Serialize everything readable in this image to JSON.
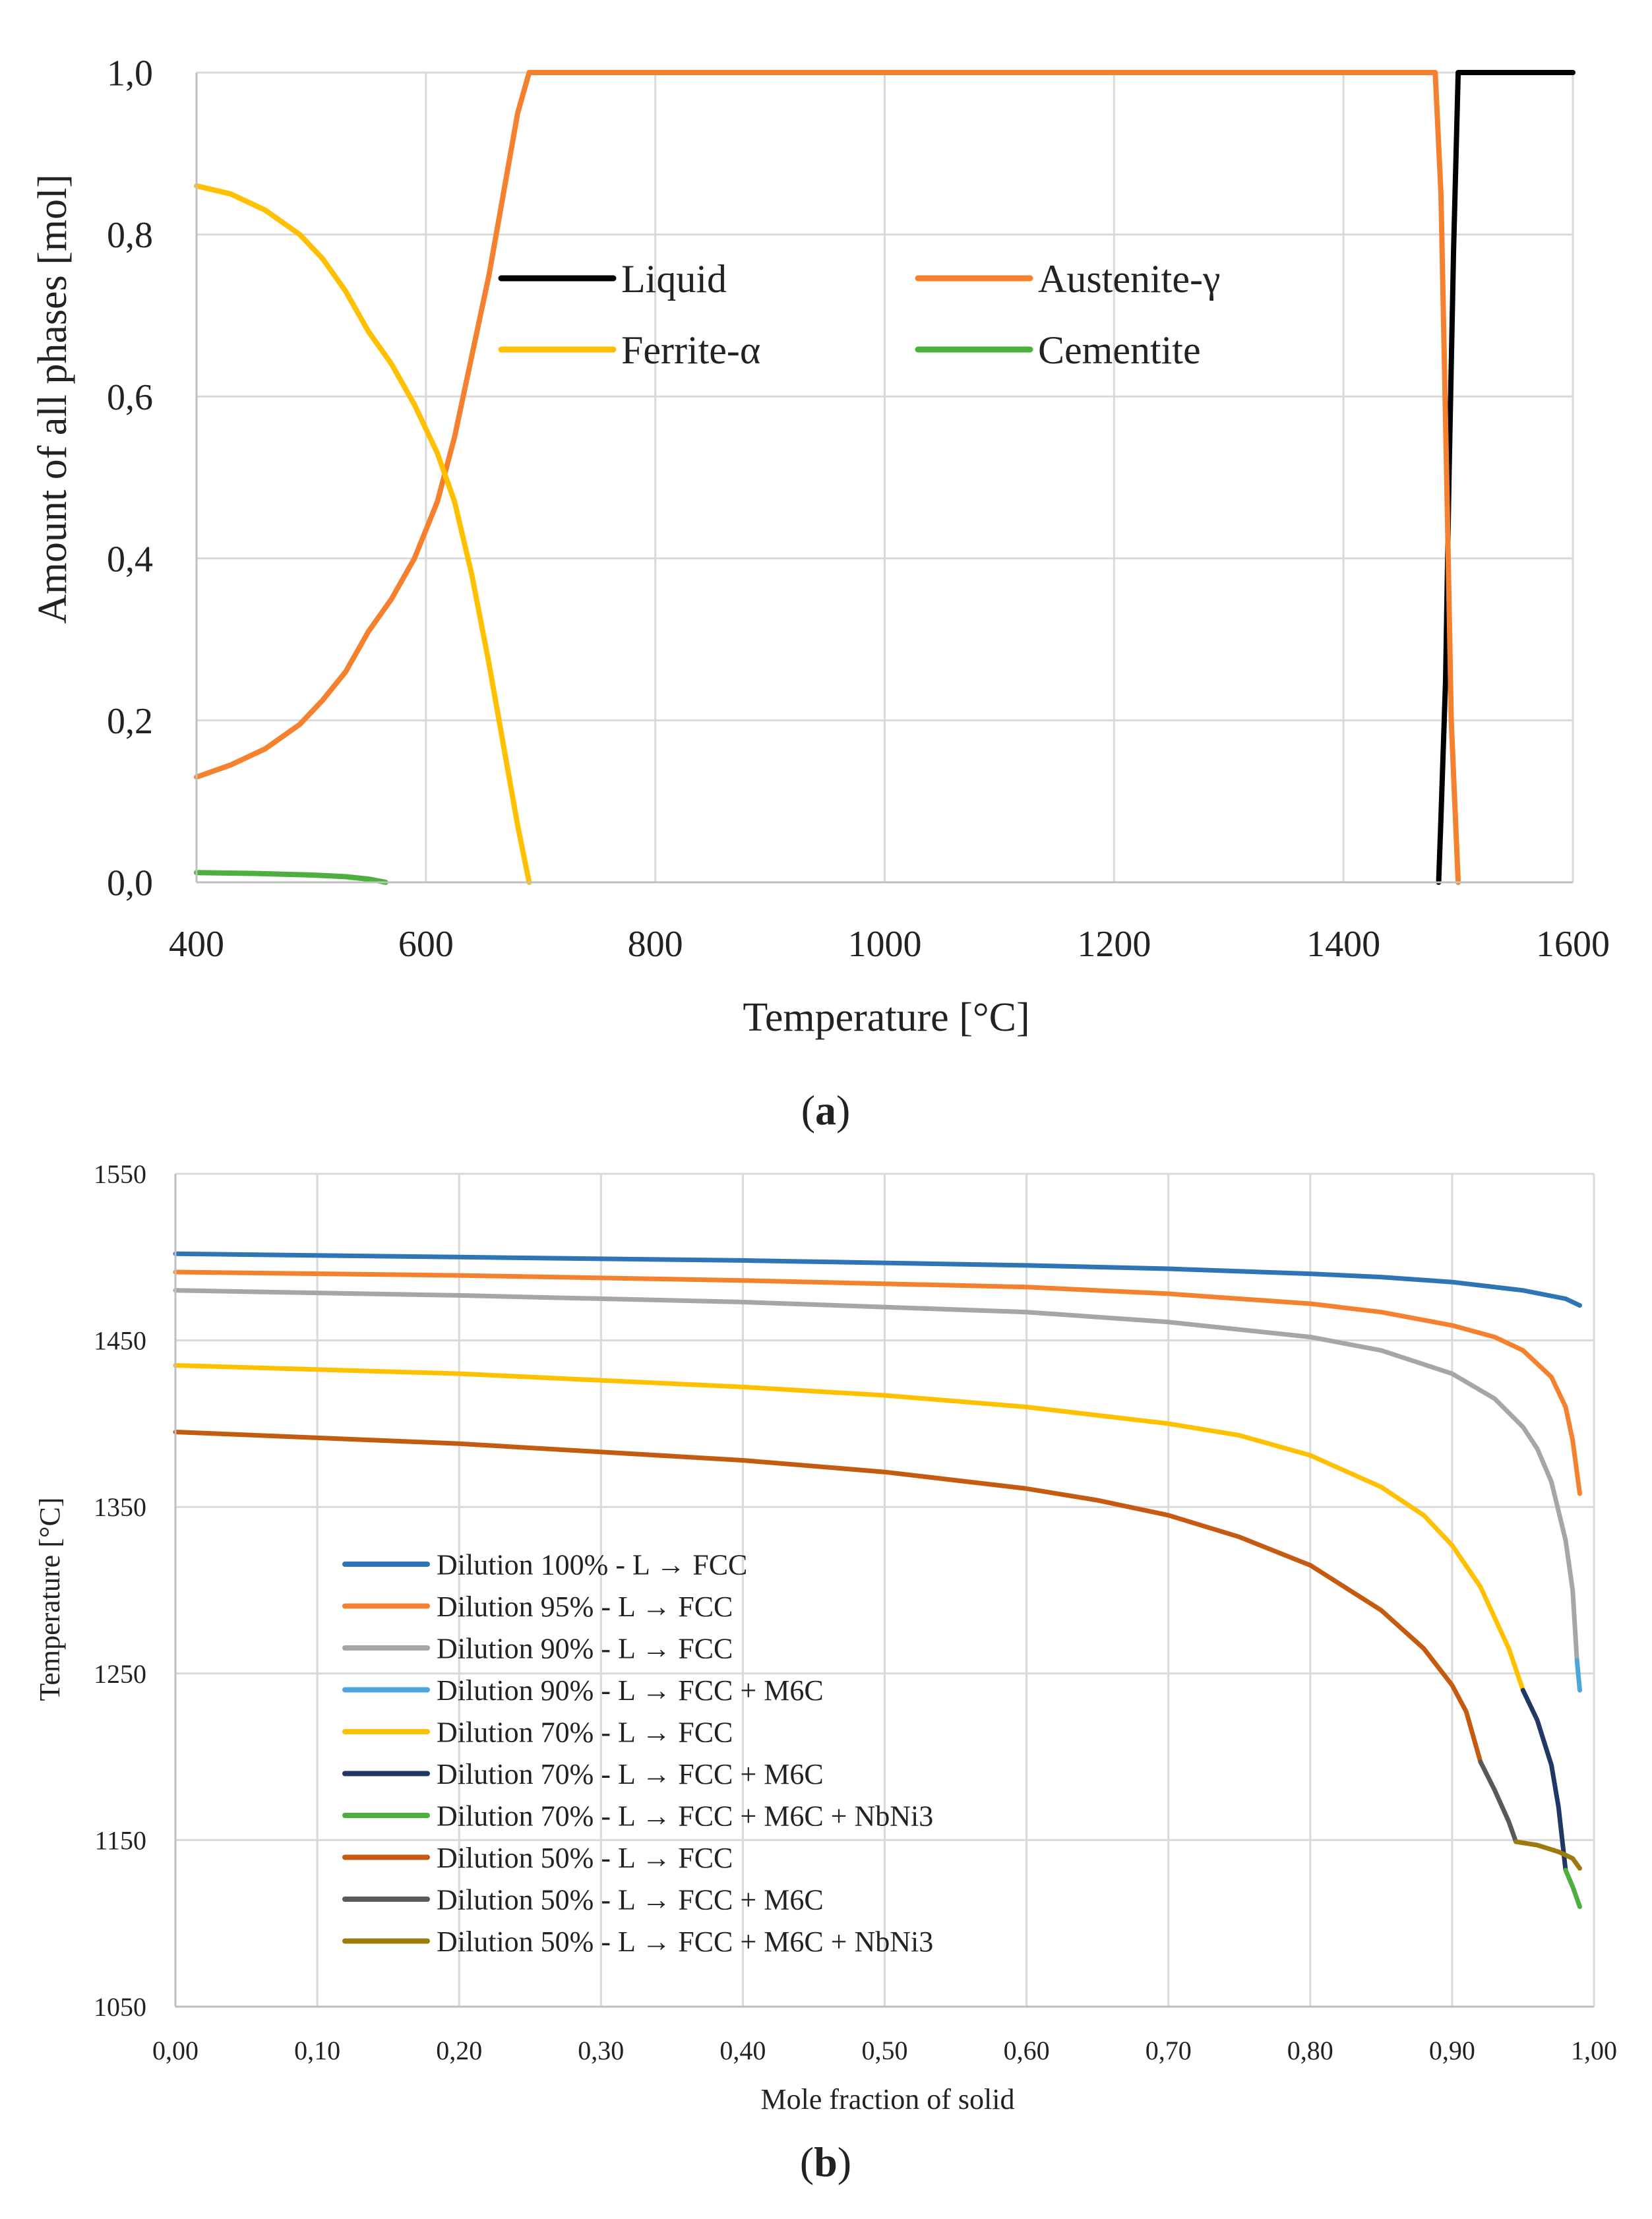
{
  "chart_data": [
    {
      "panel": "a",
      "type": "line",
      "caption_open": "(",
      "caption_letter": "a",
      "caption_close": ")",
      "xlabel": "Temperature [°C]",
      "ylabel": "Amount of all phases [mol]",
      "xlim": [
        400,
        1600
      ],
      "ylim": [
        0,
        1
      ],
      "xticks": [
        400,
        600,
        800,
        1000,
        1200,
        1400,
        1600
      ],
      "yticks": [
        0.0,
        0.2,
        0.4,
        0.6,
        0.8,
        1.0
      ],
      "xtick_labels": [
        "400",
        "600",
        "800",
        "1000",
        "1200",
        "1400",
        "1600"
      ],
      "ytick_labels": [
        "0,0",
        "0,2",
        "0,4",
        "0,6",
        "0,8",
        "1,0"
      ],
      "grid": true,
      "legend_placement": "center",
      "series": [
        {
          "name": "Liquid",
          "color": "#000000",
          "x": [
            1483,
            1485,
            1489,
            1492,
            1496,
            1500,
            1600
          ],
          "y": [
            0.0,
            0.08,
            0.25,
            0.5,
            0.78,
            1.0,
            1.0
          ]
        },
        {
          "name": "Austenite-γ",
          "color": "#F5802E",
          "x": [
            400,
            430,
            460,
            490,
            510,
            530,
            550,
            560,
            570,
            590,
            610,
            625,
            640,
            655,
            670,
            680,
            690,
            700,
            800,
            1000,
            1200,
            1400,
            1480,
            1485,
            1490,
            1494,
            1500
          ],
          "y": [
            0.13,
            0.145,
            0.165,
            0.195,
            0.225,
            0.26,
            0.31,
            0.33,
            0.35,
            0.4,
            0.47,
            0.55,
            0.65,
            0.75,
            0.87,
            0.95,
            1.0,
            1.0,
            1.0,
            1.0,
            1.0,
            1.0,
            1.0,
            0.85,
            0.5,
            0.2,
            0.0
          ]
        },
        {
          "name": "Ferrite-α",
          "color": "#FFC000",
          "x": [
            400,
            430,
            460,
            490,
            510,
            530,
            550,
            570,
            590,
            610,
            625,
            640,
            655,
            670,
            680,
            690
          ],
          "y": [
            0.86,
            0.85,
            0.83,
            0.8,
            0.77,
            0.73,
            0.68,
            0.64,
            0.59,
            0.53,
            0.47,
            0.38,
            0.27,
            0.15,
            0.07,
            0.0
          ]
        },
        {
          "name": "Cementite",
          "color": "#4CAF3E",
          "x": [
            400,
            450,
            500,
            530,
            550,
            565
          ],
          "y": [
            0.012,
            0.011,
            0.009,
            0.007,
            0.004,
            0.0
          ]
        }
      ]
    },
    {
      "panel": "b",
      "type": "line",
      "caption_open": "(",
      "caption_letter": "b",
      "caption_close": ")",
      "xlabel": "Mole fraction of solid",
      "ylabel": "Temperature [°C]",
      "xlim": [
        0,
        1
      ],
      "ylim": [
        1050,
        1550
      ],
      "xticks": [
        0,
        0.1,
        0.2,
        0.3,
        0.4,
        0.5,
        0.6,
        0.7,
        0.8,
        0.9,
        1.0
      ],
      "yticks": [
        1050,
        1150,
        1250,
        1350,
        1450,
        1550
      ],
      "xtick_labels": [
        "0,00",
        "0,10",
        "0,20",
        "0,30",
        "0,40",
        "0,50",
        "0,60",
        "0,70",
        "0,80",
        "0,90",
        "1,00"
      ],
      "ytick_labels": [
        "1050",
        "1150",
        "1250",
        "1350",
        "1450",
        "1550"
      ],
      "grid": true,
      "legend_placement": "lower-center",
      "series": [
        {
          "name": "Dilution 100% - L → FCC",
          "color": "#2E75B6",
          "x": [
            0,
            0.2,
            0.4,
            0.6,
            0.7,
            0.8,
            0.85,
            0.9,
            0.95,
            0.98,
            0.99
          ],
          "y": [
            1502,
            1500,
            1498,
            1495,
            1493,
            1490,
            1488,
            1485,
            1480,
            1475,
            1471
          ]
        },
        {
          "name": "Dilution 95% - L → FCC",
          "color": "#F5802E",
          "x": [
            0,
            0.2,
            0.4,
            0.6,
            0.7,
            0.8,
            0.85,
            0.9,
            0.93,
            0.95,
            0.97,
            0.98,
            0.985,
            0.99
          ],
          "y": [
            1491,
            1489,
            1486,
            1482,
            1478,
            1472,
            1467,
            1459,
            1452,
            1444,
            1428,
            1410,
            1390,
            1358
          ]
        },
        {
          "name": "Dilution 90% - L → FCC",
          "color": "#A6A6A6",
          "x": [
            0,
            0.2,
            0.4,
            0.6,
            0.7,
            0.8,
            0.85,
            0.9,
            0.93,
            0.95,
            0.96,
            0.97,
            0.98,
            0.985,
            0.988
          ],
          "y": [
            1480,
            1477,
            1473,
            1467,
            1461,
            1452,
            1444,
            1430,
            1415,
            1398,
            1385,
            1365,
            1330,
            1300,
            1258
          ]
        },
        {
          "name": "Dilution 90% - L → FCC + M6C",
          "color": "#4DA6DB",
          "x": [
            0.988,
            0.989,
            0.99
          ],
          "y": [
            1258,
            1249,
            1240
          ]
        },
        {
          "name": "Dilution 70% - L → FCC",
          "color": "#FFC000",
          "x": [
            0,
            0.2,
            0.4,
            0.5,
            0.6,
            0.7,
            0.75,
            0.8,
            0.85,
            0.88,
            0.9,
            0.92,
            0.94,
            0.95
          ],
          "y": [
            1435,
            1430,
            1422,
            1417,
            1410,
            1400,
            1393,
            1381,
            1362,
            1345,
            1327,
            1302,
            1265,
            1240
          ]
        },
        {
          "name": "Dilution 70% - L → FCC + M6C",
          "color": "#1F3864",
          "x": [
            0.95,
            0.96,
            0.97,
            0.975,
            0.98
          ],
          "y": [
            1240,
            1222,
            1195,
            1170,
            1132
          ]
        },
        {
          "name": "Dilution 70% - L → FCC + M6C + NbNi3",
          "color": "#4CAF3E",
          "x": [
            0.98,
            0.985,
            0.99
          ],
          "y": [
            1132,
            1122,
            1110
          ]
        },
        {
          "name": "Dilution 50% - L → FCC",
          "color": "#C55A11",
          "x": [
            0,
            0.2,
            0.4,
            0.5,
            0.6,
            0.65,
            0.7,
            0.75,
            0.8,
            0.85,
            0.88,
            0.9,
            0.91,
            0.92
          ],
          "y": [
            1395,
            1388,
            1378,
            1371,
            1361,
            1354,
            1345,
            1332,
            1315,
            1288,
            1265,
            1243,
            1227,
            1197
          ]
        },
        {
          "name": "Dilution 50% - L → FCC + M6C",
          "color": "#595959",
          "x": [
            0.92,
            0.93,
            0.94,
            0.945
          ],
          "y": [
            1197,
            1180,
            1161,
            1149
          ]
        },
        {
          "name": "Dilution 50% - L → FCC + M6C + NbNi3",
          "color": "#9C7A0C",
          "x": [
            0.945,
            0.96,
            0.975,
            0.985,
            0.99
          ],
          "y": [
            1149,
            1147,
            1143,
            1139,
            1133
          ]
        }
      ]
    }
  ]
}
